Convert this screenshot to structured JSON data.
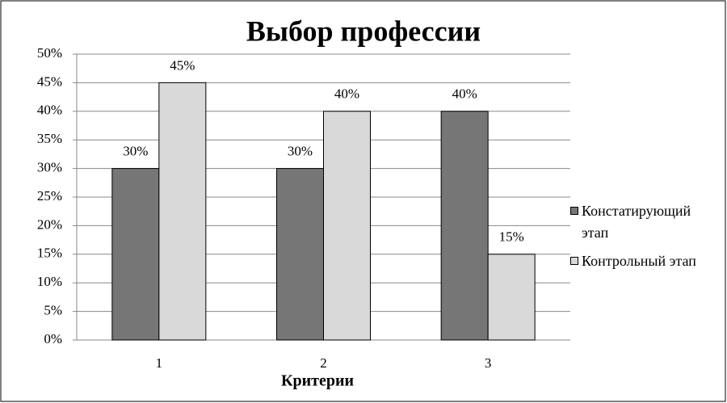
{
  "chart_data": {
    "type": "bar",
    "title": "Выбор профессии",
    "x_label": "Критерии",
    "categories": [
      "1",
      "2",
      "3"
    ],
    "series": [
      {
        "name": "Констатирующий этап",
        "color": "#767676",
        "values": [
          30,
          30,
          40
        ],
        "value_labels": [
          "30%",
          "30%",
          "40%"
        ]
      },
      {
        "name": "Контрольный этап",
        "color": "#d9d9d9",
        "values": [
          45,
          40,
          15
        ],
        "value_labels": [
          "45%",
          "40%",
          "15%"
        ]
      }
    ],
    "ylim": [
      0,
      50
    ],
    "yticks": [
      {
        "value": 0,
        "label": "0%"
      },
      {
        "value": 5,
        "label": "5%"
      },
      {
        "value": 10,
        "label": "10%"
      },
      {
        "value": 15,
        "label": "15%"
      },
      {
        "value": 20,
        "label": "20%"
      },
      {
        "value": 25,
        "label": "25%"
      },
      {
        "value": 30,
        "label": "30%"
      },
      {
        "value": 35,
        "label": "35%"
      },
      {
        "value": 40,
        "label": "40%"
      },
      {
        "value": 45,
        "label": "45%"
      },
      {
        "value": 50,
        "label": "50%"
      }
    ],
    "grid": true,
    "legend": "right"
  }
}
